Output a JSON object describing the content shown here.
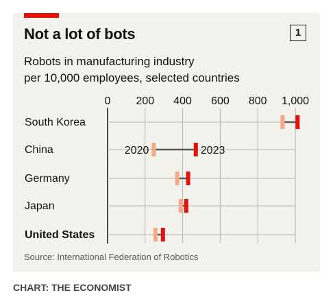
{
  "header": {
    "title": "Not a lot of bots",
    "chart_number": "1",
    "subtitle_line1": "Robots in manufacturing industry",
    "subtitle_line2": "per 10,000 employees, selected countries"
  },
  "footer": {
    "source": "Source: International Federation of Robotics",
    "credit": "CHART: THE ECONOMIST"
  },
  "colors": {
    "accent_red": "#e3120b",
    "value_2020": "#f4a98a",
    "value_2023": "#e3120b",
    "connector": "#595959",
    "gridline": "#b7b7b7",
    "panel_bg": "#f3f2ed"
  },
  "chart_data": {
    "type": "dumbbell",
    "title": "Not a lot of bots",
    "subtitle": "Robots in manufacturing industry per 10,000 employees, selected countries",
    "xlim": [
      0,
      1000
    ],
    "x_ticks": [
      0,
      200,
      400,
      600,
      800,
      1000
    ],
    "x_tick_labels": [
      "0",
      "200",
      "400",
      "600",
      "800",
      "1,000"
    ],
    "grid": true,
    "series_names": [
      "2020",
      "2023"
    ],
    "series_labels_shown_on": "China",
    "categories": [
      "South Korea",
      "China",
      "Germany",
      "Japan",
      "United States"
    ],
    "bold_categories": [
      "United States"
    ],
    "values_2020": [
      932,
      246,
      371,
      390,
      255
    ],
    "values_2023": [
      1012,
      470,
      429,
      419,
      295
    ]
  }
}
